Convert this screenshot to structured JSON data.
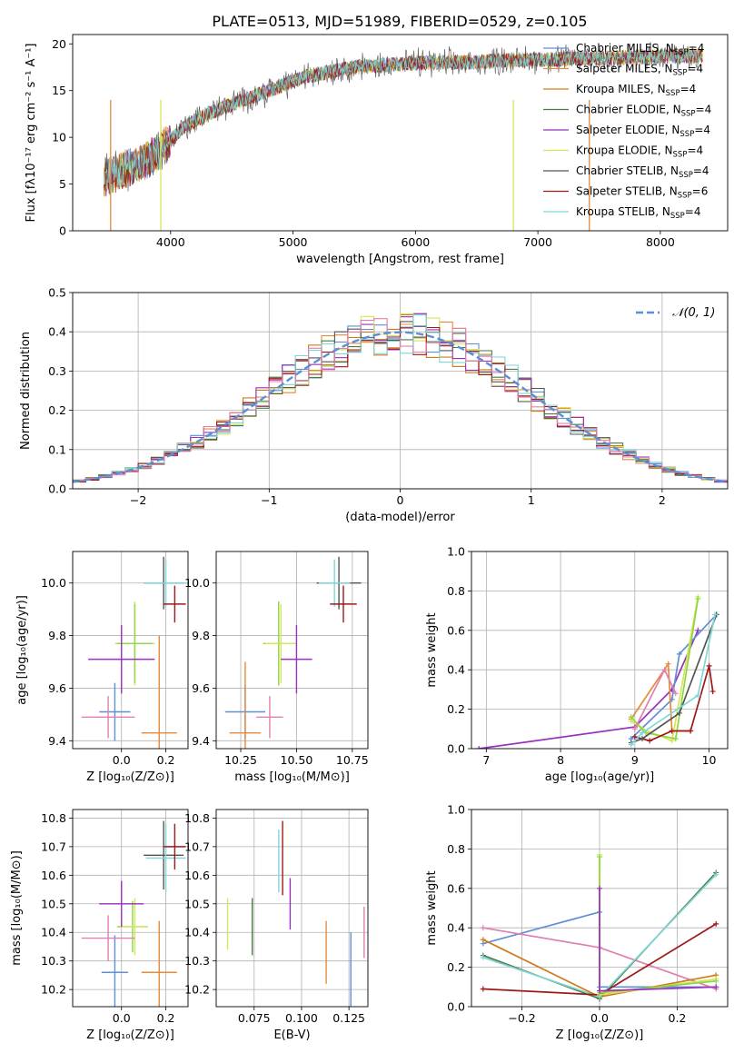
{
  "figure_title": "PLATE=0513, MJD=51989, FIBERID=0529, z=0.105",
  "colors": {
    "Chabrier MILES": "#5f8fd6",
    "Salpeter MILES": "#e8893a",
    "Kroupa MILES": "#d27a1a",
    "Chabrier ELODIE": "#4a7a4a",
    "Salpeter ELODIE": "#9b2fc0",
    "Kroupa ELODIE": "#d7e55a",
    "Chabrier STELIB": "#555555",
    "Salpeter STELIB": "#a01818",
    "Kroupa STELIB": "#7fd6d6",
    "extra1": "#e080b0",
    "extra2": "#8fd640",
    "normal": "#5b8fd6"
  },
  "chart_data": [
    {
      "id": "spectrum",
      "type": "line",
      "title": "PLATE=0513, MJD=51989, FIBERID=0529, z=0.105",
      "xlabel": "wavelength [Angstrom, rest frame]",
      "ylabel": "Flux [fλ10⁻¹⁷ erg cm⁻² s⁻¹ A⁻¹]",
      "xlim": [
        3200,
        8550
      ],
      "ylim": [
        0,
        21
      ],
      "xticks": [
        4000,
        5000,
        6000,
        7000,
        8000
      ],
      "yticks": [
        0,
        5,
        10,
        15,
        20
      ],
      "legend_position": "right",
      "legend": [
        {
          "label": "Chabrier MILES, N",
          "sub": "SSP",
          "suffix": "=4",
          "color": "#5f8fd6"
        },
        {
          "label": "Salpeter MILES, N",
          "sub": "SSP",
          "suffix": "=4",
          "color": "#e8893a"
        },
        {
          "label": "Kroupa MILES, N",
          "sub": "SSP",
          "suffix": "=4",
          "color": "#d27a1a"
        },
        {
          "label": "Chabrier ELODIE, N",
          "sub": "SSP",
          "suffix": "=4",
          "color": "#4a7a4a"
        },
        {
          "label": "Salpeter ELODIE, N",
          "sub": "SSP",
          "suffix": "=4",
          "color": "#9b2fc0"
        },
        {
          "label": "Kroupa ELODIE, N",
          "sub": "SSP",
          "suffix": "=4",
          "color": "#d7e55a"
        },
        {
          "label": "Chabrier STELIB, N",
          "sub": "SSP",
          "suffix": "=4",
          "color": "#555555"
        },
        {
          "label": "Salpeter STELIB, N",
          "sub": "SSP",
          "suffix": "=6",
          "color": "#a01818"
        },
        {
          "label": "Kroupa STELIB, N",
          "sub": "SSP",
          "suffix": "=4",
          "color": "#7fd6d6"
        }
      ],
      "continuum": {
        "x": [
          3450,
          3600,
          3800,
          3950,
          4100,
          4300,
          4500,
          4700,
          4900,
          5100,
          5300,
          5500,
          5800,
          6100,
          6400,
          6700,
          7000,
          7300,
          7600,
          7900,
          8200,
          8350
        ],
        "y": [
          5.5,
          6.5,
          7.5,
          9.0,
          11.0,
          12.5,
          13.5,
          14.5,
          15.5,
          16.5,
          17.0,
          17.5,
          17.8,
          18.0,
          18.0,
          18.2,
          18.3,
          18.4,
          18.5,
          18.6,
          18.7,
          18.7
        ]
      }
    },
    {
      "id": "residuals",
      "type": "line",
      "xlabel": "(data-model)/error",
      "ylabel": "Normed distribution",
      "xlim": [
        -2.5,
        2.5
      ],
      "ylim": [
        0,
        0.5
      ],
      "xticks": [
        -2,
        -1,
        0,
        1,
        2
      ],
      "yticks": [
        0.0,
        0.1,
        0.2,
        0.3,
        0.4,
        0.5
      ],
      "legend_label": "𝒩(0, 1)",
      "legend_position": "top-right"
    },
    {
      "id": "age_vs_Z",
      "type": "scatter",
      "xlabel": "Z [log₁₀(Z/Z⊙)]",
      "ylabel": "age  [log₁₀(age/yr)]",
      "xlim": [
        -0.22,
        0.3
      ],
      "ylim": [
        9.37,
        10.12
      ],
      "xticks": [
        0.0,
        0.2
      ],
      "yticks": [
        9.4,
        9.6,
        9.8,
        10.0
      ],
      "points": [
        {
          "x": 0.19,
          "y": 10.0,
          "xerr": 0.09,
          "yerr": 0.1,
          "color": "#555555"
        },
        {
          "x": 0.2,
          "y": 10.0,
          "xerr": 0.1,
          "yerr": 0.09,
          "color": "#7fd6d6"
        },
        {
          "x": 0.24,
          "y": 9.92,
          "xerr": 0.05,
          "yerr": 0.07,
          "color": "#a01818"
        },
        {
          "x": 0.06,
          "y": 9.77,
          "xerr": 0.09,
          "yerr": 0.16,
          "color": "#d7e55a"
        },
        {
          "x": 0.06,
          "y": 9.77,
          "xerr": 0.08,
          "yerr": 0.15,
          "color": "#8fd640"
        },
        {
          "x": 0.0,
          "y": 9.71,
          "xerr": 0.15,
          "yerr": 0.13,
          "color": "#9b2fc0"
        },
        {
          "x": -0.03,
          "y": 9.51,
          "xerr": 0.07,
          "yerr": 0.11,
          "color": "#5f8fd6"
        },
        {
          "x": -0.06,
          "y": 9.49,
          "xerr": 0.12,
          "yerr": 0.08,
          "color": "#e080b0"
        },
        {
          "x": 0.17,
          "y": 9.43,
          "xerr": 0.08,
          "yerr": 0.37,
          "color": "#e8893a"
        }
      ]
    },
    {
      "id": "age_vs_mass",
      "type": "scatter",
      "xlabel": "mass [log₁₀(M/M⊙)]",
      "ylabel": "",
      "xlim": [
        10.14,
        10.82
      ],
      "ylim": [
        9.37,
        10.12
      ],
      "xticks": [
        10.25,
        10.5,
        10.75
      ],
      "yticks": [
        9.4,
        9.6,
        9.8,
        10.0
      ],
      "points": [
        {
          "x": 10.69,
          "y": 10.0,
          "xerr": 0.1,
          "yerr": 0.1,
          "color": "#555555"
        },
        {
          "x": 10.67,
          "y": 10.0,
          "xerr": 0.07,
          "yerr": 0.09,
          "color": "#7fd6d6"
        },
        {
          "x": 10.71,
          "y": 9.92,
          "xerr": 0.06,
          "yerr": 0.07,
          "color": "#a01818"
        },
        {
          "x": 10.42,
          "y": 9.77,
          "xerr": 0.07,
          "yerr": 0.16,
          "color": "#8fd640"
        },
        {
          "x": 10.43,
          "y": 9.77,
          "xerr": 0.07,
          "yerr": 0.15,
          "color": "#d7e55a"
        },
        {
          "x": 10.5,
          "y": 9.71,
          "xerr": 0.07,
          "yerr": 0.13,
          "color": "#9b2fc0"
        },
        {
          "x": 10.27,
          "y": 9.51,
          "xerr": 0.09,
          "yerr": 0.1,
          "color": "#5f8fd6"
        },
        {
          "x": 10.38,
          "y": 9.49,
          "xerr": 0.06,
          "yerr": 0.08,
          "color": "#e080b0"
        },
        {
          "x": 10.27,
          "y": 9.43,
          "xerr": 0.07,
          "yerr": 0.27,
          "color": "#e8893a"
        }
      ]
    },
    {
      "id": "weight_vs_age",
      "type": "line",
      "xlabel": "age  [log₁₀(age/yr)]",
      "ylabel": "mass weight",
      "xlim": [
        6.8,
        10.25
      ],
      "ylim": [
        0,
        1.0
      ],
      "xticks": [
        7,
        8,
        9,
        10
      ],
      "yticks": [
        0.0,
        0.2,
        0.4,
        0.6,
        0.8,
        1.0
      ],
      "series": [
        {
          "color": "#9b2fc0",
          "x": [
            6.9,
            9.0,
            9.5,
            9.85
          ],
          "y": [
            0.0,
            0.11,
            0.3,
            0.6
          ]
        },
        {
          "color": "#5f8fd6",
          "x": [
            8.95,
            9.5,
            9.6,
            10.1
          ],
          "y": [
            0.05,
            0.25,
            0.48,
            0.68
          ]
        },
        {
          "color": "#e8893a",
          "x": [
            8.95,
            9.45,
            9.5,
            9.75
          ],
          "y": [
            0.15,
            0.43,
            0.09,
            0.09
          ]
        },
        {
          "color": "#d7e55a",
          "x": [
            8.95,
            9.1,
            9.5,
            9.85
          ],
          "y": [
            0.14,
            0.1,
            0.04,
            0.77
          ]
        },
        {
          "color": "#8fd640",
          "x": [
            8.95,
            9.15,
            9.55,
            9.85
          ],
          "y": [
            0.16,
            0.08,
            0.05,
            0.76
          ]
        },
        {
          "color": "#a01818",
          "x": [
            9.0,
            9.2,
            9.5,
            9.75,
            10.0,
            10.05
          ],
          "y": [
            0.06,
            0.04,
            0.09,
            0.09,
            0.42,
            0.29
          ]
        },
        {
          "color": "#555555",
          "x": [
            8.95,
            9.1,
            9.6,
            10.1
          ],
          "y": [
            0.03,
            0.05,
            0.18,
            0.68
          ]
        },
        {
          "color": "#7fd6d6",
          "x": [
            8.95,
            9.1,
            9.85,
            10.08
          ],
          "y": [
            0.02,
            0.08,
            0.27,
            0.68
          ]
        },
        {
          "color": "#e080b0",
          "x": [
            9.0,
            9.4,
            9.55
          ],
          "y": [
            0.1,
            0.4,
            0.28
          ]
        }
      ]
    },
    {
      "id": "mass_vs_Z",
      "type": "scatter",
      "xlabel": "Z [log₁₀(Z/Z⊙)]",
      "ylabel": "mass [log₁₀(M/M⊙)]",
      "xlim": [
        -0.22,
        0.3
      ],
      "ylim": [
        10.14,
        10.83
      ],
      "xticks": [
        0.0,
        0.2
      ],
      "yticks": [
        10.2,
        10.3,
        10.4,
        10.5,
        10.6,
        10.7,
        10.8
      ],
      "points": [
        {
          "x": 0.19,
          "y": 10.67,
          "xerr": 0.09,
          "yerr": 0.12,
          "color": "#555555"
        },
        {
          "x": 0.2,
          "y": 10.66,
          "xerr": 0.09,
          "yerr": 0.12,
          "color": "#7fd6d6"
        },
        {
          "x": 0.24,
          "y": 10.7,
          "xerr": 0.05,
          "yerr": 0.08,
          "color": "#a01818"
        },
        {
          "x": 0.05,
          "y": 10.42,
          "xerr": 0.07,
          "yerr": 0.09,
          "color": "#8fd640"
        },
        {
          "x": 0.06,
          "y": 10.42,
          "xerr": 0.06,
          "yerr": 0.1,
          "color": "#d7e55a"
        },
        {
          "x": 0.0,
          "y": 10.5,
          "xerr": 0.1,
          "yerr": 0.08,
          "color": "#9b2fc0"
        },
        {
          "x": -0.03,
          "y": 10.26,
          "xerr": 0.06,
          "yerr": 0.13,
          "color": "#5f8fd6"
        },
        {
          "x": -0.06,
          "y": 10.38,
          "xerr": 0.12,
          "yerr": 0.08,
          "color": "#e080b0"
        },
        {
          "x": 0.17,
          "y": 10.26,
          "xerr": 0.08,
          "yerr": 0.18,
          "color": "#e8893a"
        }
      ]
    },
    {
      "id": "mass_vs_EBV",
      "type": "scatter",
      "xlabel": "E(B-V)",
      "ylabel": "",
      "xlim": [
        0.055,
        0.135
      ],
      "ylim": [
        10.14,
        10.83
      ],
      "xticks": [
        0.075,
        0.1,
        0.125
      ],
      "xtick_labels": [
        "0.075",
        "0.100",
        "0.125"
      ],
      "yticks": [
        10.2,
        10.3,
        10.4,
        10.5,
        10.6,
        10.7,
        10.8
      ],
      "points": [
        {
          "x": 0.061,
          "y": 10.43,
          "yerr": 0.09,
          "color": "#d7e55a"
        },
        {
          "x": 0.074,
          "y": 10.42,
          "yerr": 0.1,
          "color": "#4a7a4a"
        },
        {
          "x": 0.088,
          "y": 10.65,
          "yerr": 0.11,
          "color": "#7fd6d6"
        },
        {
          "x": 0.09,
          "y": 10.66,
          "yerr": 0.13,
          "color": "#a01818"
        },
        {
          "x": 0.094,
          "y": 10.5,
          "yerr": 0.09,
          "color": "#9b2fc0"
        },
        {
          "x": 0.113,
          "y": 10.33,
          "yerr": 0.11,
          "color": "#e8893a"
        },
        {
          "x": 0.126,
          "y": 10.26,
          "yerr": 0.14,
          "color": "#5f8fd6"
        },
        {
          "x": 0.133,
          "y": 10.4,
          "yerr": 0.09,
          "color": "#e080b0"
        }
      ]
    },
    {
      "id": "weight_vs_Z",
      "type": "line",
      "xlabel": "Z [log₁₀(Z/Z⊙)]",
      "ylabel": "mass weight",
      "xlim": [
        -0.33,
        0.33
      ],
      "ylim": [
        0,
        1.0
      ],
      "xticks": [
        -0.2,
        0.0,
        0.2
      ],
      "yticks": [
        0.0,
        0.2,
        0.4,
        0.6,
        0.8,
        1.0
      ],
      "series": [
        {
          "color": "#5f8fd6",
          "x": [
            -0.3,
            0.0,
            0.0,
            0.3
          ],
          "y": [
            0.32,
            0.48,
            0.1,
            0.1
          ]
        },
        {
          "color": "#e080b0",
          "x": [
            -0.3,
            0.0,
            0.3
          ],
          "y": [
            0.4,
            0.3,
            0.09
          ]
        },
        {
          "color": "#d27a1a",
          "x": [
            -0.3,
            0.0,
            0.3
          ],
          "y": [
            0.34,
            0.05,
            0.16
          ]
        },
        {
          "color": "#4a7a4a",
          "x": [
            -0.3,
            0.0,
            0.3
          ],
          "y": [
            0.26,
            0.04,
            0.68
          ]
        },
        {
          "color": "#7fd6d6",
          "x": [
            -0.3,
            0.0,
            0.3
          ],
          "y": [
            0.25,
            0.05,
            0.67
          ]
        },
        {
          "color": "#a01818",
          "x": [
            -0.3,
            0.0,
            0.3
          ],
          "y": [
            0.09,
            0.06,
            0.42
          ]
        },
        {
          "color": "#d7e55a",
          "x": [
            0.0,
            0.0,
            0.3
          ],
          "y": [
            0.77,
            0.06,
            0.14
          ]
        },
        {
          "color": "#8fd640",
          "x": [
            0.0,
            0.0,
            0.3
          ],
          "y": [
            0.76,
            0.07,
            0.13
          ]
        },
        {
          "color": "#9b2fc0",
          "x": [
            0.0,
            0.0,
            0.3
          ],
          "y": [
            0.6,
            0.08,
            0.1
          ]
        }
      ]
    }
  ]
}
